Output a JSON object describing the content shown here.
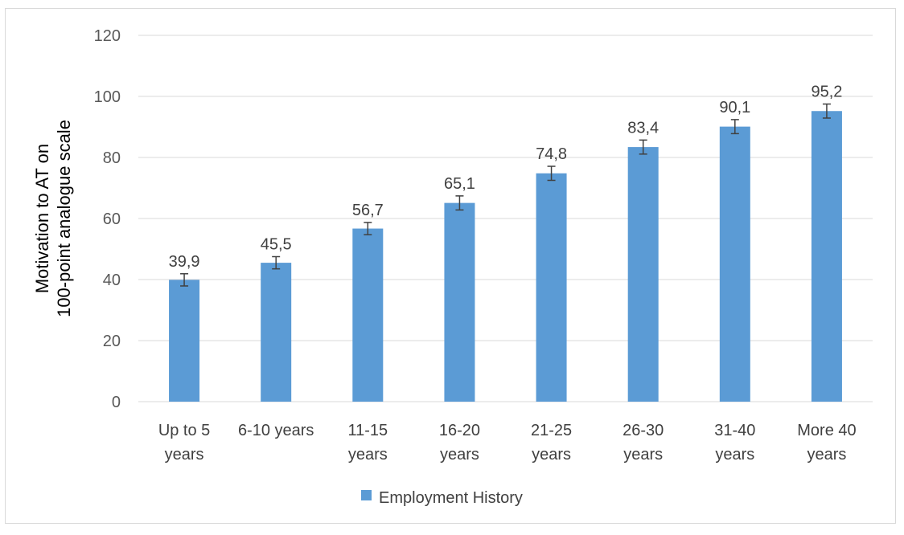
{
  "chart_data": {
    "type": "bar",
    "categories": [
      [
        "Up to 5",
        "years"
      ],
      [
        "6-10 years"
      ],
      [
        "11-15",
        "years"
      ],
      [
        "16-20",
        "years"
      ],
      [
        "21-25",
        "years"
      ],
      [
        "26-30",
        "years"
      ],
      [
        "31-40",
        "years"
      ],
      [
        "More 40",
        "years"
      ]
    ],
    "series": [
      {
        "name": "Employment History",
        "values": [
          39.9,
          45.5,
          56.7,
          65.1,
          74.8,
          83.4,
          90.1,
          95.2
        ],
        "value_labels": [
          "39,9",
          "45,5",
          "56,7",
          "65,1",
          "74,8",
          "83,4",
          "90,1",
          "95,2"
        ],
        "error": [
          2,
          2,
          2,
          2.3,
          2.3,
          2.3,
          2.3,
          2.3
        ],
        "color": "#5b9bd5"
      }
    ],
    "ylabel": [
      "Motivation  to AT on",
      "100-point  analogue scale"
    ],
    "ylim": [
      0,
      120
    ],
    "yticks": [
      0,
      20,
      40,
      60,
      80,
      100,
      120
    ],
    "grid": true,
    "legend_position": "bottom",
    "gridline_color": "#d9d9d9",
    "error_bar_color": "#404040"
  }
}
